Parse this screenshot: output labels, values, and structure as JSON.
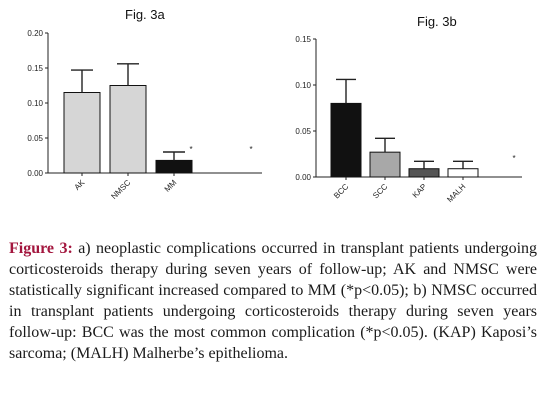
{
  "charts": {
    "a": {
      "title": "Fig. 3a",
      "chart_data": {
        "type": "bar",
        "categories": [
          "AK",
          "NMSC",
          "MM"
        ],
        "values": [
          0.115,
          0.125,
          0.018
        ],
        "errors": [
          0.032,
          0.031,
          0.012
        ],
        "colors": [
          "#d6d6d6",
          "#d6d6d6",
          "#111111"
        ],
        "ylim": [
          0,
          0.2
        ],
        "yticks": [
          0.0,
          0.05,
          0.1,
          0.15,
          0.2
        ],
        "ytick_labels": [
          "0.00",
          "0.05",
          "0.10",
          "0.15",
          "0.20"
        ],
        "annotations": [
          {
            "text": "*",
            "near": "left of MM"
          },
          {
            "text": "*",
            "near": "right of MM"
          }
        ]
      }
    },
    "b": {
      "title": "Fig. 3b",
      "chart_data": {
        "type": "bar",
        "categories": [
          "BCC",
          "SCC",
          "KAP",
          "MALH"
        ],
        "values": [
          0.08,
          0.027,
          0.009,
          0.009
        ],
        "errors": [
          0.026,
          0.015,
          0.008,
          0.008
        ],
        "colors": [
          "#111111",
          "#a8a8a8",
          "#555555",
          "#ffffff"
        ],
        "ylim": [
          0,
          0.15
        ],
        "yticks": [
          0.0,
          0.05,
          0.1,
          0.15
        ],
        "ytick_labels": [
          "0.00",
          "0.05",
          "0.10",
          "0.15"
        ],
        "annotations": [
          {
            "text": "*",
            "near": "right of MALH"
          }
        ]
      }
    }
  },
  "caption": {
    "label": "Figure 3:",
    "text": "a) neoplastic complications occurred in transplant patients undergoing corticosteroids therapy during seven years of follow-up; AK and NMSC were statistically significant increased compared to MM (*p<0.05); b) NMSC occurred in transplant patients undergoing corticosteroids therapy during seven years follow-up: BCC was the most common complication (*p<0.05). (KAP) Kaposi’s sarcoma; (MALH) Malherbe’s epithelioma."
  }
}
